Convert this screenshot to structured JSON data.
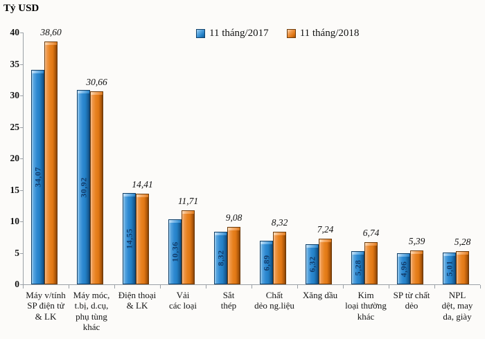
{
  "chart_data": {
    "type": "bar",
    "title": "Tỷ USD",
    "ylabel": "Tỷ USD",
    "xlabel": "",
    "ylim": [
      0,
      40
    ],
    "yticks": [
      0,
      5,
      10,
      15,
      20,
      25,
      30,
      35,
      40
    ],
    "grid": false,
    "legend_position": "top-center",
    "decimal_separator": ",",
    "categories": [
      "Máy v/tính\nSP điện tử\n& LK",
      "Máy móc,\nt.bị, d.cụ,\nphụ tùng\nkhác",
      "Điện thoại\n& LK",
      "Vải\ncác loại",
      "Sắt\nthép",
      "Chất\ndẻo ng.liệu",
      "Xăng dầu",
      "Kim\nloại thường\nkhác",
      "SP từ chất\ndẻo",
      "NPL\ndệt, may\nda, giày"
    ],
    "series": [
      {
        "name": "11 tháng/2017",
        "color": "#2C86CC",
        "label_position": "inside-vertical",
        "values": [
          34.07,
          30.92,
          14.55,
          10.36,
          8.32,
          6.89,
          6.32,
          5.28,
          4.96,
          5.01
        ],
        "display_values": [
          "34,07",
          "30,92",
          "14,55",
          "10,36",
          "8,32",
          "6,89",
          "6,32",
          "5,28",
          "4,96",
          "5,01"
        ]
      },
      {
        "name": "11 tháng/2018",
        "color": "#E87C20",
        "label_position": "above-italic",
        "values": [
          38.6,
          30.66,
          14.41,
          11.71,
          9.08,
          8.32,
          7.24,
          6.74,
          5.39,
          5.28
        ],
        "display_values": [
          "38,60",
          "30,66",
          "14,41",
          "11,71",
          "9,08",
          "8,32",
          "7,24",
          "6,74",
          "5,39",
          "5,28"
        ]
      }
    ]
  }
}
